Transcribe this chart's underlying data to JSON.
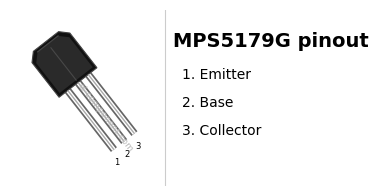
{
  "title": "MPS5179G pinout",
  "title_fontsize": 14,
  "title_bold": true,
  "pins": [
    {
      "number": 1,
      "name": "Emitter"
    },
    {
      "number": 2,
      "name": "Base"
    },
    {
      "number": 3,
      "name": "Collector"
    }
  ],
  "pin_label_fontsize": 10,
  "watermark": "el-component.com",
  "watermark_fontsize": 6.5,
  "bg_color": "#ffffff",
  "body_dark": "#111111",
  "body_mid": "#2a2a2a",
  "body_edge": "#444444",
  "text_color": "#000000",
  "divider_color": "#cccccc",
  "pin_dark": "#666666",
  "pin_light": "#ffffff",
  "pin_mid": "#aaaaaa",
  "watermark_color": "#bbbbbb",
  "num_label_fontsize": 6
}
